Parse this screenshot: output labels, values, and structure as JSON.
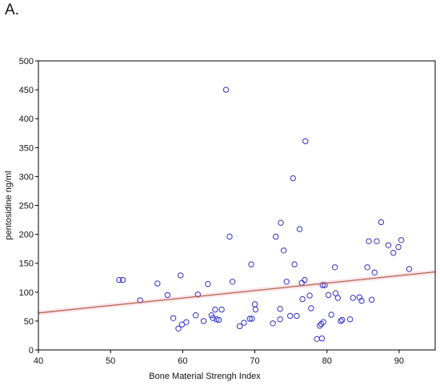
{
  "panel_label": "A.",
  "colors": {
    "points": "#3333cc",
    "fit_line": "#b5654a",
    "axis": "#000000",
    "band": "#f4c6d6"
  },
  "chart_data": {
    "type": "scatter",
    "xlabel": "Bone Material Strengh Index",
    "ylabel": "pentosidine ng/ml",
    "xlim": [
      40,
      95
    ],
    "ylim": [
      0,
      500
    ],
    "xticks": [
      40,
      50,
      60,
      70,
      80,
      90
    ],
    "yticks": [
      0,
      50,
      100,
      150,
      200,
      250,
      300,
      350,
      400,
      450,
      500
    ],
    "grid": false,
    "fit_line": {
      "x": [
        40,
        95
      ],
      "y": [
        64,
        135
      ]
    },
    "points": [
      {
        "x": 51.2,
        "y": 121
      },
      {
        "x": 51.7,
        "y": 121
      },
      {
        "x": 54.1,
        "y": 86
      },
      {
        "x": 56.5,
        "y": 115
      },
      {
        "x": 57.9,
        "y": 95
      },
      {
        "x": 58.7,
        "y": 55
      },
      {
        "x": 59.4,
        "y": 37
      },
      {
        "x": 59.7,
        "y": 129
      },
      {
        "x": 59.9,
        "y": 44
      },
      {
        "x": 60.5,
        "y": 48
      },
      {
        "x": 61.8,
        "y": 60
      },
      {
        "x": 62.1,
        "y": 96
      },
      {
        "x": 62.9,
        "y": 50
      },
      {
        "x": 63.5,
        "y": 114
      },
      {
        "x": 64.0,
        "y": 60
      },
      {
        "x": 64.2,
        "y": 55
      },
      {
        "x": 64.5,
        "y": 70
      },
      {
        "x": 64.7,
        "y": 53
      },
      {
        "x": 65.0,
        "y": 52
      },
      {
        "x": 65.4,
        "y": 70
      },
      {
        "x": 66.0,
        "y": 450
      },
      {
        "x": 66.5,
        "y": 196
      },
      {
        "x": 66.9,
        "y": 118
      },
      {
        "x": 67.9,
        "y": 41
      },
      {
        "x": 68.5,
        "y": 47
      },
      {
        "x": 69.3,
        "y": 54
      },
      {
        "x": 69.5,
        "y": 148
      },
      {
        "x": 69.6,
        "y": 54
      },
      {
        "x": 70.0,
        "y": 79
      },
      {
        "x": 70.1,
        "y": 70
      },
      {
        "x": 72.5,
        "y": 46
      },
      {
        "x": 72.9,
        "y": 196
      },
      {
        "x": 73.5,
        "y": 71
      },
      {
        "x": 73.5,
        "y": 53
      },
      {
        "x": 73.6,
        "y": 220
      },
      {
        "x": 74.0,
        "y": 172
      },
      {
        "x": 74.4,
        "y": 118
      },
      {
        "x": 74.9,
        "y": 59
      },
      {
        "x": 75.3,
        "y": 297
      },
      {
        "x": 75.5,
        "y": 148
      },
      {
        "x": 75.8,
        "y": 59
      },
      {
        "x": 76.2,
        "y": 209
      },
      {
        "x": 76.5,
        "y": 116
      },
      {
        "x": 76.6,
        "y": 88
      },
      {
        "x": 76.9,
        "y": 121
      },
      {
        "x": 77.0,
        "y": 361
      },
      {
        "x": 77.6,
        "y": 94
      },
      {
        "x": 77.8,
        "y": 72
      },
      {
        "x": 78.6,
        "y": 19
      },
      {
        "x": 79.0,
        "y": 42
      },
      {
        "x": 79.2,
        "y": 45
      },
      {
        "x": 79.3,
        "y": 20
      },
      {
        "x": 79.4,
        "y": 112
      },
      {
        "x": 79.5,
        "y": 48
      },
      {
        "x": 79.7,
        "y": 112
      },
      {
        "x": 80.2,
        "y": 95
      },
      {
        "x": 80.6,
        "y": 61
      },
      {
        "x": 81.1,
        "y": 143
      },
      {
        "x": 81.2,
        "y": 98
      },
      {
        "x": 81.5,
        "y": 90
      },
      {
        "x": 81.9,
        "y": 50
      },
      {
        "x": 82.1,
        "y": 52
      },
      {
        "x": 83.2,
        "y": 53
      },
      {
        "x": 83.6,
        "y": 90
      },
      {
        "x": 84.5,
        "y": 91
      },
      {
        "x": 84.8,
        "y": 85
      },
      {
        "x": 85.6,
        "y": 143
      },
      {
        "x": 85.8,
        "y": 188
      },
      {
        "x": 86.2,
        "y": 87
      },
      {
        "x": 86.6,
        "y": 134
      },
      {
        "x": 86.9,
        "y": 188
      },
      {
        "x": 87.5,
        "y": 221
      },
      {
        "x": 88.5,
        "y": 181
      },
      {
        "x": 89.2,
        "y": 168
      },
      {
        "x": 89.9,
        "y": 178
      },
      {
        "x": 90.3,
        "y": 190
      },
      {
        "x": 91.4,
        "y": 140
      }
    ]
  }
}
